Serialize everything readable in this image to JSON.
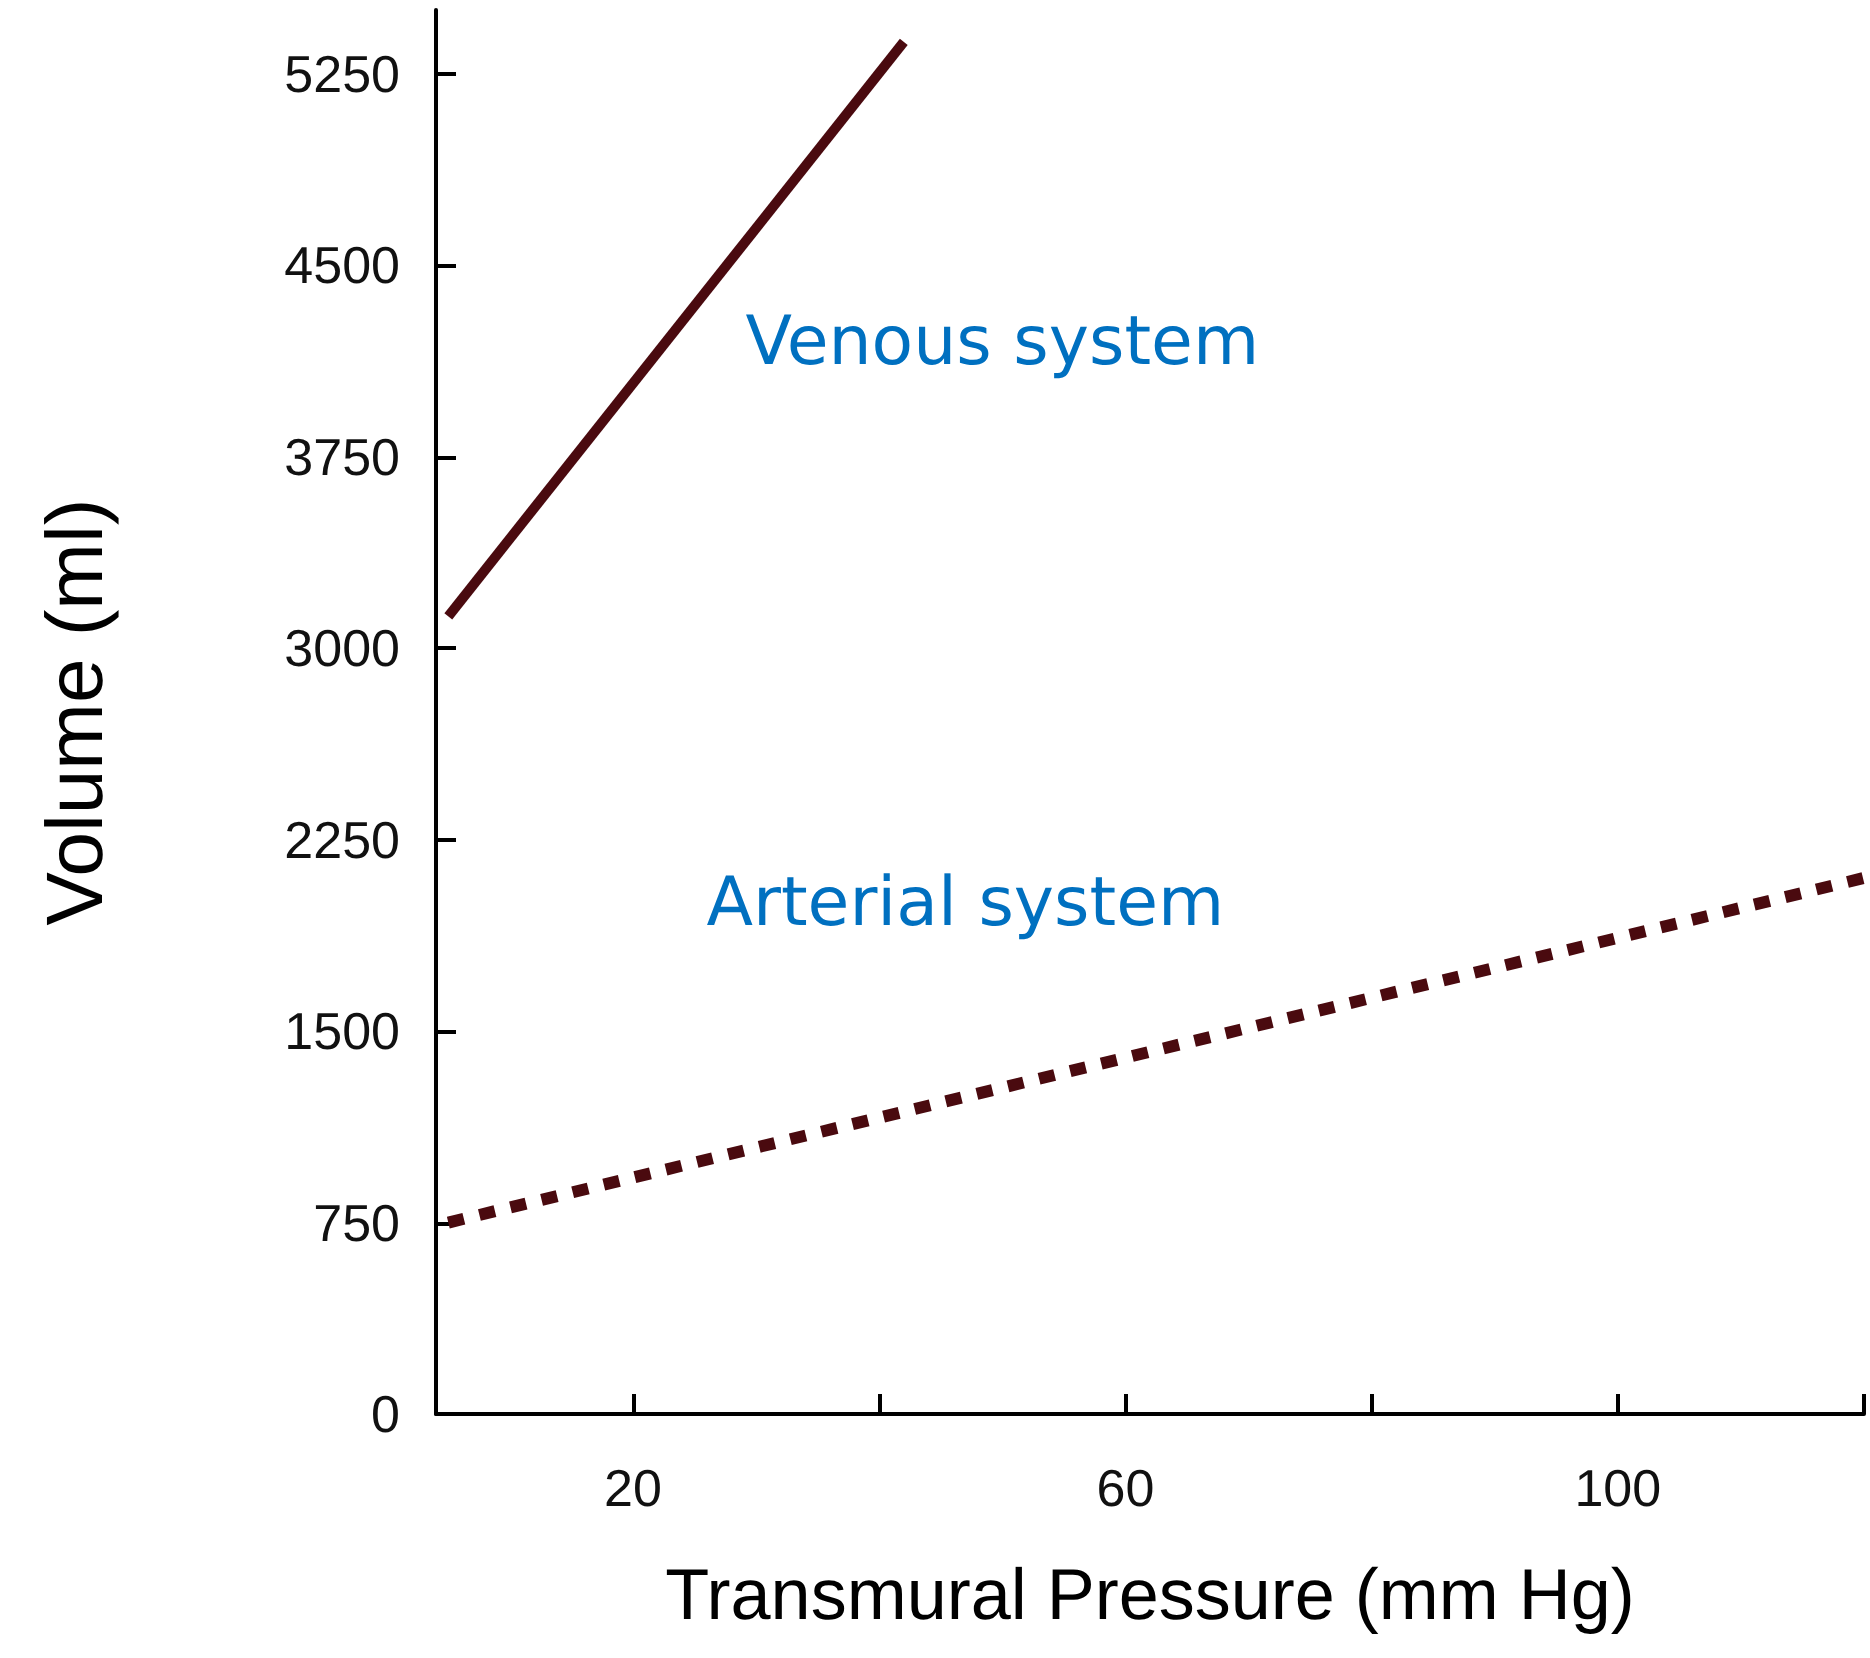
{
  "chart_data": {
    "type": "line",
    "xlabel": "Transmural Pressure (mm Hg)",
    "ylabel": "Volume (ml)",
    "xlim": [
      4,
      120
    ],
    "xticks": [
      20,
      {
        "value": 40,
        "label": null
      },
      60,
      {
        "value": 80,
        "label": null
      },
      100,
      {
        "value": 120,
        "label": null
      }
    ],
    "ylim": [
      0,
      5500
    ],
    "yticks": [
      0,
      750,
      1500,
      2250,
      3000,
      3750,
      4500,
      5250
    ],
    "grid": false,
    "legend": false,
    "marker": "none",
    "series": [
      {
        "name": "Venous system",
        "color": "#4a0a0f",
        "line_style": "solid",
        "x": [
          5,
          42
        ],
        "values": [
          3125,
          5375
        ]
      },
      {
        "name": "Arterial system",
        "color": "#4a0a0f",
        "line_style": "dotted",
        "x": [
          5,
          120
        ],
        "values": [
          750,
          2100
        ]
      }
    ]
  }
}
